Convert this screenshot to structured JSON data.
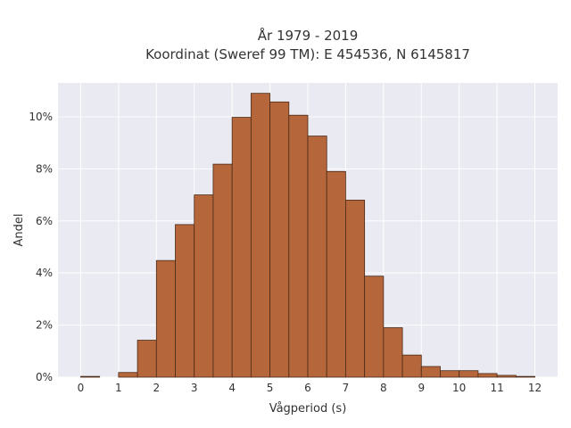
{
  "chart_data": {
    "type": "bar",
    "title_lines": [
      "År 1979 - 2019",
      "Koordinat (Sweref 99 TM): E 454536, N 6145817"
    ],
    "xlabel": "Vågperiod (s)",
    "ylabel": "Andel",
    "xlim": [
      -0.6,
      12.6
    ],
    "ylim": [
      0,
      11.3
    ],
    "bin_width": 0.5,
    "bin_starts": [
      0,
      0.5,
      1,
      1.5,
      2,
      2.5,
      3,
      3.5,
      4,
      4.5,
      5,
      5.5,
      6,
      6.5,
      7,
      7.5,
      8,
      8.5,
      9,
      9.5,
      10,
      10.5,
      11,
      11.5
    ],
    "values": [
      0.03,
      0.0,
      0.18,
      1.42,
      4.48,
      5.86,
      7.0,
      8.18,
      9.98,
      10.9,
      10.57,
      10.06,
      9.26,
      7.9,
      6.8,
      3.88,
      1.9,
      0.85,
      0.41,
      0.25,
      0.25,
      0.14,
      0.07,
      0.03
    ],
    "x_ticks": [
      0,
      1,
      2,
      3,
      4,
      5,
      6,
      7,
      8,
      9,
      10,
      11,
      12
    ],
    "y_ticks": [
      0,
      2,
      4,
      6,
      8,
      10
    ],
    "y_tick_format": "percent",
    "grid": true,
    "colors": {
      "bar_fill": "#b5673b",
      "bar_stroke": "#4a2a18",
      "plot_bg": "#eaeaf2",
      "grid": "#ffffff",
      "text": "#333333"
    }
  }
}
